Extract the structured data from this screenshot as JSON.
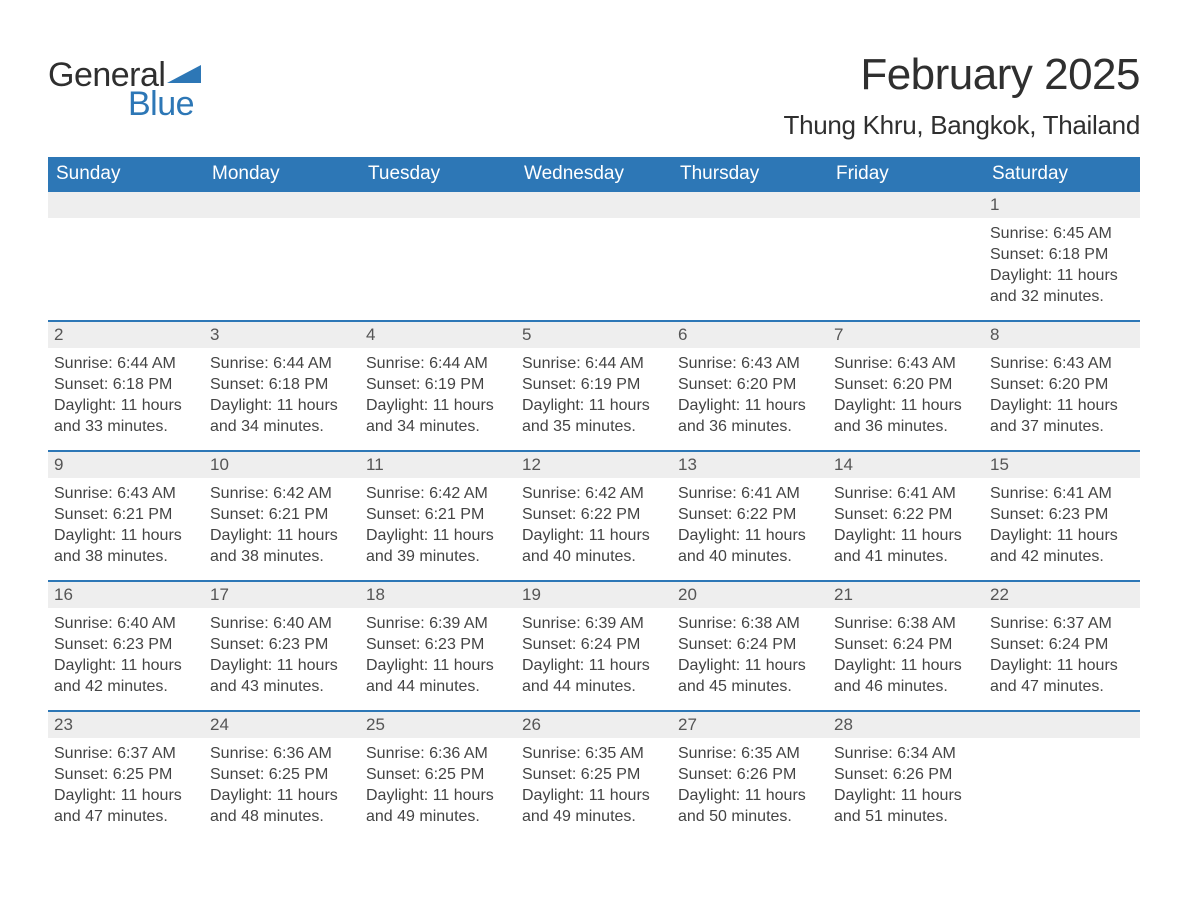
{
  "brand": {
    "text_general": "General",
    "text_blue": "Blue",
    "triangle_color": "#2d77b6",
    "general_color": "#2f2f2f",
    "blue_color": "#2d77b6"
  },
  "header": {
    "month_title": "February 2025",
    "location": "Thung Khru, Bangkok, Thailand"
  },
  "colors": {
    "dow_bg": "#2d77b6",
    "dow_fg": "#ffffff",
    "strip_bg": "#eeeeee",
    "week_border": "#2d77b6",
    "text": "#333333",
    "page_bg": "#ffffff"
  },
  "typography": {
    "font_family": "Segoe UI, Arial, sans-serif",
    "month_title_size_pt": 33,
    "location_size_pt": 19,
    "dow_size_pt": 14,
    "body_size_pt": 12
  },
  "labels": {
    "sunrise": "Sunrise",
    "sunset": "Sunset",
    "daylight": "Daylight"
  },
  "days_of_week": [
    "Sunday",
    "Monday",
    "Tuesday",
    "Wednesday",
    "Thursday",
    "Friday",
    "Saturday"
  ],
  "weeks": [
    [
      null,
      null,
      null,
      null,
      null,
      null,
      {
        "n": "1",
        "sunrise": "6:45 AM",
        "sunset": "6:18 PM",
        "daylight": "11 hours and 32 minutes."
      }
    ],
    [
      {
        "n": "2",
        "sunrise": "6:44 AM",
        "sunset": "6:18 PM",
        "daylight": "11 hours and 33 minutes."
      },
      {
        "n": "3",
        "sunrise": "6:44 AM",
        "sunset": "6:18 PM",
        "daylight": "11 hours and 34 minutes."
      },
      {
        "n": "4",
        "sunrise": "6:44 AM",
        "sunset": "6:19 PM",
        "daylight": "11 hours and 34 minutes."
      },
      {
        "n": "5",
        "sunrise": "6:44 AM",
        "sunset": "6:19 PM",
        "daylight": "11 hours and 35 minutes."
      },
      {
        "n": "6",
        "sunrise": "6:43 AM",
        "sunset": "6:20 PM",
        "daylight": "11 hours and 36 minutes."
      },
      {
        "n": "7",
        "sunrise": "6:43 AM",
        "sunset": "6:20 PM",
        "daylight": "11 hours and 36 minutes."
      },
      {
        "n": "8",
        "sunrise": "6:43 AM",
        "sunset": "6:20 PM",
        "daylight": "11 hours and 37 minutes."
      }
    ],
    [
      {
        "n": "9",
        "sunrise": "6:43 AM",
        "sunset": "6:21 PM",
        "daylight": "11 hours and 38 minutes."
      },
      {
        "n": "10",
        "sunrise": "6:42 AM",
        "sunset": "6:21 PM",
        "daylight": "11 hours and 38 minutes."
      },
      {
        "n": "11",
        "sunrise": "6:42 AM",
        "sunset": "6:21 PM",
        "daylight": "11 hours and 39 minutes."
      },
      {
        "n": "12",
        "sunrise": "6:42 AM",
        "sunset": "6:22 PM",
        "daylight": "11 hours and 40 minutes."
      },
      {
        "n": "13",
        "sunrise": "6:41 AM",
        "sunset": "6:22 PM",
        "daylight": "11 hours and 40 minutes."
      },
      {
        "n": "14",
        "sunrise": "6:41 AM",
        "sunset": "6:22 PM",
        "daylight": "11 hours and 41 minutes."
      },
      {
        "n": "15",
        "sunrise": "6:41 AM",
        "sunset": "6:23 PM",
        "daylight": "11 hours and 42 minutes."
      }
    ],
    [
      {
        "n": "16",
        "sunrise": "6:40 AM",
        "sunset": "6:23 PM",
        "daylight": "11 hours and 42 minutes."
      },
      {
        "n": "17",
        "sunrise": "6:40 AM",
        "sunset": "6:23 PM",
        "daylight": "11 hours and 43 minutes."
      },
      {
        "n": "18",
        "sunrise": "6:39 AM",
        "sunset": "6:23 PM",
        "daylight": "11 hours and 44 minutes."
      },
      {
        "n": "19",
        "sunrise": "6:39 AM",
        "sunset": "6:24 PM",
        "daylight": "11 hours and 44 minutes."
      },
      {
        "n": "20",
        "sunrise": "6:38 AM",
        "sunset": "6:24 PM",
        "daylight": "11 hours and 45 minutes."
      },
      {
        "n": "21",
        "sunrise": "6:38 AM",
        "sunset": "6:24 PM",
        "daylight": "11 hours and 46 minutes."
      },
      {
        "n": "22",
        "sunrise": "6:37 AM",
        "sunset": "6:24 PM",
        "daylight": "11 hours and 47 minutes."
      }
    ],
    [
      {
        "n": "23",
        "sunrise": "6:37 AM",
        "sunset": "6:25 PM",
        "daylight": "11 hours and 47 minutes."
      },
      {
        "n": "24",
        "sunrise": "6:36 AM",
        "sunset": "6:25 PM",
        "daylight": "11 hours and 48 minutes."
      },
      {
        "n": "25",
        "sunrise": "6:36 AM",
        "sunset": "6:25 PM",
        "daylight": "11 hours and 49 minutes."
      },
      {
        "n": "26",
        "sunrise": "6:35 AM",
        "sunset": "6:25 PM",
        "daylight": "11 hours and 49 minutes."
      },
      {
        "n": "27",
        "sunrise": "6:35 AM",
        "sunset": "6:26 PM",
        "daylight": "11 hours and 50 minutes."
      },
      {
        "n": "28",
        "sunrise": "6:34 AM",
        "sunset": "6:26 PM",
        "daylight": "11 hours and 51 minutes."
      },
      null
    ]
  ]
}
